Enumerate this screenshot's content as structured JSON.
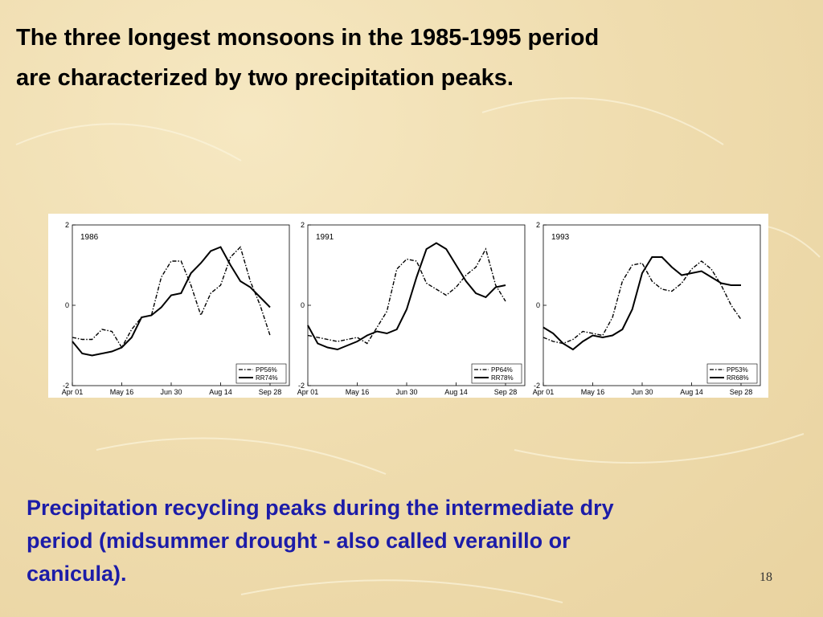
{
  "slide": {
    "title_lines": [
      "The three longest monsoons in the 1985-1995 period",
      "are characterized by two precipitation peaks."
    ],
    "caption_lines": [
      "Precipitation recycling peaks during the intermediate dry",
      "period (midsummer drought - also called veranillo or",
      "canicula)."
    ],
    "page_number": "18"
  },
  "chart_data": [
    {
      "type": "line",
      "title": "1986",
      "categories": [
        "Apr 01",
        null,
        null,
        null,
        null,
        "May 16",
        null,
        null,
        null,
        null,
        "Jun 30",
        null,
        null,
        null,
        null,
        "Aug 14",
        null,
        null,
        null,
        null,
        "Sep 28"
      ],
      "series": [
        {
          "name": "PP56%",
          "color": "#000000",
          "style": "dashdot",
          "values": [
            -0.8,
            -0.85,
            -0.85,
            -0.6,
            -0.65,
            -1.05,
            -0.6,
            -0.3,
            -0.25,
            0.7,
            1.1,
            1.1,
            0.5,
            -0.25,
            0.3,
            0.5,
            1.2,
            1.45,
            0.6,
            0,
            -0.75
          ]
        },
        {
          "name": "RR74%",
          "color": "#000000",
          "style": "solid",
          "values": [
            -0.9,
            -1.2,
            -1.25,
            -1.2,
            -1.15,
            -1.05,
            -0.8,
            -0.3,
            -0.25,
            -0.05,
            0.25,
            0.3,
            0.8,
            1.05,
            1.35,
            1.45,
            1.0,
            0.6,
            0.45,
            0.2,
            -0.05
          ]
        }
      ],
      "ylim": [
        -2,
        2
      ],
      "yticks": [
        -2,
        0,
        2
      ],
      "legend": "lower right"
    },
    {
      "type": "line",
      "title": "1991",
      "categories": [
        "Apr 01",
        null,
        null,
        null,
        null,
        "May 16",
        null,
        null,
        null,
        null,
        "Jun 30",
        null,
        null,
        null,
        null,
        "Aug 14",
        null,
        null,
        null,
        null,
        "Sep 28"
      ],
      "series": [
        {
          "name": "PP64%",
          "color": "#000000",
          "style": "dashdot",
          "values": [
            -0.75,
            -0.8,
            -0.85,
            -0.9,
            -0.85,
            -0.8,
            -0.95,
            -0.55,
            -0.15,
            0.9,
            1.15,
            1.1,
            0.55,
            0.4,
            0.25,
            0.45,
            0.75,
            0.95,
            1.4,
            0.5,
            0.1
          ]
        },
        {
          "name": "RR78%",
          "color": "#000000",
          "style": "solid",
          "values": [
            -0.5,
            -0.95,
            -1.05,
            -1.1,
            -1.0,
            -0.9,
            -0.75,
            -0.65,
            -0.7,
            -0.6,
            -0.1,
            0.7,
            1.4,
            1.55,
            1.4,
            1.0,
            0.6,
            0.3,
            0.2,
            0.45,
            0.5
          ]
        }
      ],
      "ylim": [
        -2,
        2
      ],
      "yticks": [
        -2,
        0,
        2
      ],
      "legend": "lower right"
    },
    {
      "type": "line",
      "title": "1993",
      "categories": [
        "Apr 01",
        null,
        null,
        null,
        null,
        "May 16",
        null,
        null,
        null,
        null,
        "Jun 30",
        null,
        null,
        null,
        null,
        "Aug 14",
        null,
        null,
        null,
        null,
        "Sep 28"
      ],
      "series": [
        {
          "name": "PP53%",
          "color": "#000000",
          "style": "dashdot",
          "values": [
            -0.8,
            -0.9,
            -0.95,
            -0.85,
            -0.65,
            -0.7,
            -0.75,
            -0.3,
            0.6,
            1.0,
            1.05,
            0.6,
            0.4,
            0.35,
            0.55,
            0.9,
            1.1,
            0.9,
            0.5,
            0.0,
            -0.35
          ]
        },
        {
          "name": "RR68%",
          "color": "#000000",
          "style": "solid",
          "values": [
            -0.55,
            -0.7,
            -0.95,
            -1.1,
            -0.9,
            -0.75,
            -0.8,
            -0.75,
            -0.6,
            -0.1,
            0.8,
            1.2,
            1.2,
            0.95,
            0.75,
            0.8,
            0.85,
            0.7,
            0.55,
            0.5,
            0.5
          ]
        }
      ],
      "ylim": [
        -2,
        2
      ],
      "yticks": [
        -2,
        0,
        2
      ],
      "legend": "lower right"
    }
  ]
}
